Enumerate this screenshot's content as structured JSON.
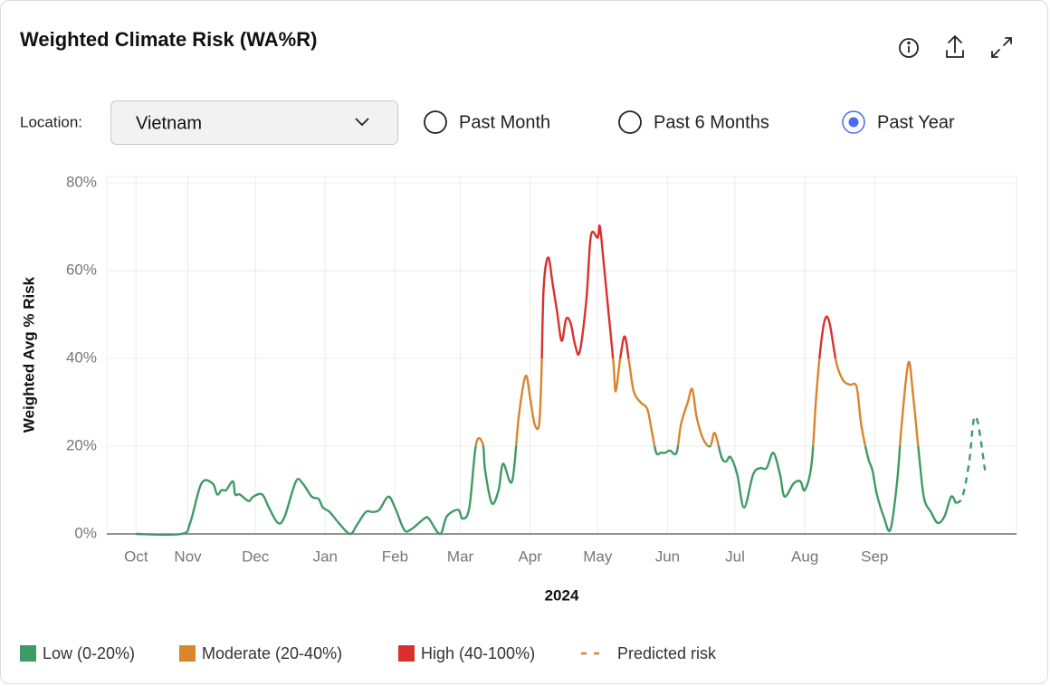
{
  "header": {
    "title": "Weighted Climate Risk (WA%R)"
  },
  "controls": {
    "location_label": "Location:",
    "location_value": "Vietnam",
    "periods": [
      "Past Month",
      "Past 6 Months",
      "Past Year"
    ],
    "selected_period": 2
  },
  "chart_data": {
    "type": "line",
    "y_label": "Weighted Avg % Risk",
    "x_label": "2024",
    "xlim": [
      -5,
      399
    ],
    "xticks": [
      {
        "value": 8,
        "label": "Oct"
      },
      {
        "value": 31,
        "label": "Nov"
      },
      {
        "value": 61,
        "label": "Dec"
      },
      {
        "value": 92,
        "label": "Jan"
      },
      {
        "value": 123,
        "label": "Feb"
      },
      {
        "value": 152,
        "label": "Mar"
      },
      {
        "value": 183,
        "label": "Apr"
      },
      {
        "value": 213,
        "label": "May"
      },
      {
        "value": 244,
        "label": "Jun"
      },
      {
        "value": 274,
        "label": "Jul"
      },
      {
        "value": 305,
        "label": "Aug"
      },
      {
        "value": 336,
        "label": "Sep"
      }
    ],
    "ylim": [
      0,
      80
    ],
    "yticks": [
      {
        "value": 0,
        "label": "0%"
      },
      {
        "value": 20,
        "label": "20%"
      },
      {
        "value": 40,
        "label": "40%"
      },
      {
        "value": 60,
        "label": "60%"
      },
      {
        "value": 80,
        "label": "80%"
      }
    ],
    "grid": true,
    "legend": "bottom-left",
    "bands": [
      {
        "name": "Low (0-20%)",
        "color": "#3f9a66",
        "range": [
          0,
          20
        ]
      },
      {
        "name": "Moderate (20-40%)",
        "color": "#d9852b",
        "range": [
          20,
          40
        ]
      },
      {
        "name": "High (40-100%)",
        "color": "#d9302e",
        "range": [
          40,
          100
        ]
      }
    ],
    "series": [
      {
        "x": [
          8,
          28,
          32,
          37,
          42,
          44,
          46,
          48,
          51,
          52,
          54,
          58,
          60,
          64,
          67,
          71,
          74,
          79,
          82,
          86,
          89,
          91,
          94,
          98,
          103,
          106,
          110,
          113,
          116,
          120,
          123,
          127,
          130,
          136,
          138,
          143,
          146,
          151,
          153,
          156,
          159,
          162,
          163,
          166,
          169,
          171,
          175,
          178,
          181,
          183,
          185,
          187,
          188,
          189,
          191,
          193,
          195,
          197,
          199,
          201,
          203,
          205,
          208,
          210,
          213,
          214,
          216,
          218,
          220,
          221,
          223,
          225,
          227,
          229,
          232,
          235,
          237,
          239,
          241,
          243,
          245,
          248,
          250,
          253,
          255,
          257,
          260,
          263,
          265,
          268,
          270,
          272,
          275,
          278,
          282,
          285,
          288,
          291,
          294,
          296,
          300,
          303,
          305,
          308,
          310,
          312,
          314,
          316,
          319,
          322,
          325,
          328,
          330,
          333,
          335,
          337,
          340,
          343,
          346,
          348,
          351,
          353,
          356,
          358,
          361,
          364,
          367,
          370,
          372
        ],
        "values": [
          0,
          0,
          2.5,
          11.5,
          11.5,
          9,
          10,
          10,
          12,
          9,
          9,
          7.5,
          8.5,
          9,
          6,
          2.5,
          4,
          12,
          11.5,
          8.5,
          8,
          6,
          5,
          2.5,
          0,
          2,
          5,
          5,
          5.5,
          8.5,
          6,
          1,
          1,
          3.5,
          3.5,
          0,
          4,
          5.5,
          3.5,
          6,
          20.5,
          20.5,
          14.5,
          7,
          10,
          16,
          12,
          27,
          36,
          31,
          25,
          25,
          36,
          56,
          63,
          57,
          50.5,
          44,
          49,
          48,
          43,
          41.5,
          53.5,
          68,
          67.5,
          70,
          60,
          49.5,
          39,
          32.5,
          40,
          45,
          39,
          32.5,
          30,
          28.5,
          23.5,
          18.5,
          18.5,
          18.5,
          19,
          18.5,
          25,
          30,
          33,
          26.5,
          21.5,
          20,
          23,
          17.5,
          16.5,
          17.5,
          13.5,
          6,
          13.5,
          15,
          15,
          18.5,
          13.5,
          8.5,
          11.5,
          12,
          10,
          16,
          31,
          42.5,
          49,
          48,
          39,
          35,
          34,
          33.5,
          25,
          17.5,
          14.5,
          9,
          4,
          1,
          12,
          25,
          39,
          32,
          16.5,
          8,
          5,
          2.5,
          4,
          8.5,
          7
        ]
      },
      {
        "name": "Predicted risk",
        "color": "#3f9a66",
        "dashed": true,
        "x": [
          372,
          375,
          378,
          380,
          382,
          385
        ],
        "values": [
          7,
          8.5,
          16.5,
          26,
          25,
          14.5
        ]
      }
    ]
  }
}
